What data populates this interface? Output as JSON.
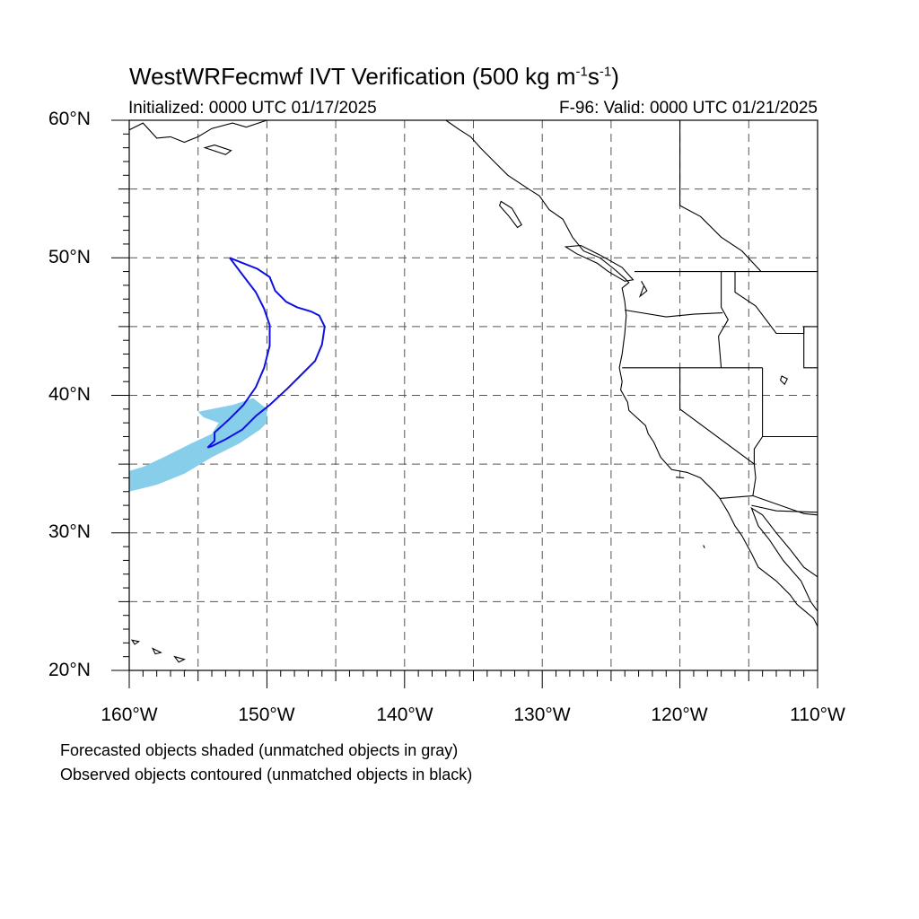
{
  "header": {
    "title_main": "WestWRFecmwf IVT Verification (500 kg m",
    "title_exp1": "-1",
    "title_mid": "s",
    "title_exp2": "-1",
    "title_end": ")",
    "initialized": "Initialized: 0000 UTC 01/17/2025",
    "valid": "F-96: Valid: 0000 UTC 01/21/2025"
  },
  "axes": {
    "lon_labels": [
      "160°W",
      "150°W",
      "140°W",
      "130°W",
      "120°W",
      "110°W"
    ],
    "lat_labels": [
      "60°N",
      "50°N",
      "40°N",
      "30°N",
      "20°N"
    ],
    "lon_range": [
      -160,
      -110
    ],
    "lat_range": [
      20,
      60
    ],
    "grid_interval_deg": 5
  },
  "colors": {
    "forecast_fill": "#87ceeb",
    "observed_contour": "#1010e0",
    "coast": "#000000",
    "grid": "#555555"
  },
  "legend": {
    "line1": "Forecasted objects shaded (unmatched objects in gray)",
    "line2": "Observed objects contoured (unmatched objects in black)"
  },
  "objects": {
    "forecast_shaded": [
      [
        -160,
        33
      ],
      [
        -158,
        33.5
      ],
      [
        -156,
        34.3
      ],
      [
        -154,
        35.5
      ],
      [
        -152,
        36.5
      ],
      [
        -150.5,
        37.5
      ],
      [
        -150,
        38
      ],
      [
        -150,
        39
      ],
      [
        -151,
        39.8
      ],
      [
        -152.5,
        39.3
      ],
      [
        -154,
        39
      ],
      [
        -155,
        38.8
      ],
      [
        -154.6,
        38.4
      ],
      [
        -153.5,
        38
      ],
      [
        -154,
        37.2
      ],
      [
        -155.5,
        36.5
      ],
      [
        -157.5,
        35.5
      ],
      [
        -159,
        34.8
      ],
      [
        -160,
        34.5
      ]
    ],
    "observed_contour": [
      [
        -152.7,
        50
      ],
      [
        -151.7,
        49.6
      ],
      [
        -150.7,
        49.2
      ],
      [
        -149.8,
        48.6
      ],
      [
        -149.4,
        47.6
      ],
      [
        -148.6,
        46.8
      ],
      [
        -147.8,
        46.4
      ],
      [
        -146.8,
        46.1
      ],
      [
        -146.2,
        45.8
      ],
      [
        -145.8,
        45
      ],
      [
        -146,
        43.7
      ],
      [
        -146.5,
        42.5
      ],
      [
        -147.5,
        41.5
      ],
      [
        -148.5,
        40.5
      ],
      [
        -149.8,
        39.3
      ],
      [
        -150.8,
        38.5
      ],
      [
        -151.8,
        37.5
      ],
      [
        -153,
        36.8
      ],
      [
        -154,
        36.3
      ],
      [
        -154.3,
        36.2
      ],
      [
        -153.8,
        36.7
      ],
      [
        -153.8,
        37.3
      ],
      [
        -152.8,
        38.2
      ],
      [
        -151.7,
        39.3
      ],
      [
        -150.8,
        40.6
      ],
      [
        -150.2,
        42
      ],
      [
        -149.8,
        43.6
      ],
      [
        -149.8,
        45.1
      ],
      [
        -150.2,
        46.3
      ],
      [
        -150.8,
        47.5
      ],
      [
        -151.8,
        48.8
      ],
      [
        -152.7,
        50
      ]
    ]
  }
}
